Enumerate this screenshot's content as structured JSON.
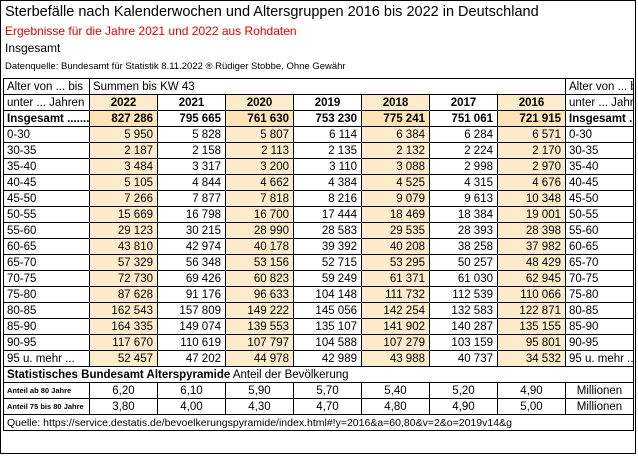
{
  "title": "Sterbefälle nach Kalenderwochen und Altersgruppen 2016 bis 2022 in Deutschland",
  "subtitle_red": "Ergebnisse für die Jahre 2021 und 2022 aus Rohdaten",
  "scope": "Insgesamt",
  "datasource": "Datenquelle: Bundesamt für Statistik 8.11.2022 ® Rüdiger Stobbe, Ohne Gewähr",
  "table": {
    "head_left_1": "Alter von ... bis",
    "head_left_2": "unter ... Jahren",
    "head_sum": "Summen bis KW 43",
    "head_right_1": "Alter von ... bis",
    "head_right_2": "unter ... Jahren",
    "years": [
      "2022",
      "2021",
      "2020",
      "2019",
      "2018",
      "2017",
      "2016"
    ],
    "highlight_cols": [
      0,
      2,
      4,
      6
    ],
    "total": {
      "label": "Insgesamt .......",
      "values": [
        "827 286",
        "795 665",
        "761 630",
        "753 230",
        "775 241",
        "751 061",
        "721 915"
      ]
    },
    "rows": [
      {
        "label": "0-30",
        "values": [
          "5 950",
          "5 828",
          "5 807",
          "6 114",
          "6 384",
          "6 284",
          "6 571"
        ]
      },
      {
        "label": "30-35",
        "values": [
          "2 187",
          "2 158",
          "2 113",
          "2 135",
          "2 132",
          "2 224",
          "2 170"
        ]
      },
      {
        "label": "35-40",
        "values": [
          "3 484",
          "3 317",
          "3 200",
          "3 110",
          "3 088",
          "2 998",
          "2 970"
        ]
      },
      {
        "label": "40-45",
        "values": [
          "5 105",
          "4 844",
          "4 662",
          "4 384",
          "4 525",
          "4 315",
          "4 676"
        ]
      },
      {
        "label": "45-50",
        "values": [
          "7 266",
          "7 877",
          "7 818",
          "8 216",
          "9 079",
          "9 613",
          "10 348"
        ]
      },
      {
        "label": "50-55",
        "values": [
          "15 669",
          "16 798",
          "16 700",
          "17 444",
          "18 469",
          "18 384",
          "19 001"
        ]
      },
      {
        "label": "55-60",
        "values": [
          "29 123",
          "30 215",
          "28 990",
          "28 583",
          "29 535",
          "28 393",
          "28 398"
        ]
      },
      {
        "label": "60-65",
        "values": [
          "43 810",
          "42 974",
          "40 178",
          "39 392",
          "40 208",
          "38 258",
          "37 982"
        ]
      },
      {
        "label": "65-70",
        "values": [
          "57 329",
          "56 348",
          "53 156",
          "52 715",
          "53 295",
          "50 257",
          "48 429"
        ]
      },
      {
        "label": "70-75",
        "values": [
          "72 730",
          "69 426",
          "60 823",
          "59 249",
          "61 371",
          "61 030",
          "62 945"
        ]
      },
      {
        "label": "75-80",
        "values": [
          "87 628",
          "91 176",
          "96 633",
          "104 148",
          "111 732",
          "112 539",
          "110 066"
        ]
      },
      {
        "label": "80-85",
        "values": [
          "162 543",
          "157 809",
          "149 222",
          "145 056",
          "142 254",
          "132 583",
          "122 871"
        ]
      },
      {
        "label": "85-90",
        "values": [
          "164 335",
          "149 074",
          "139 553",
          "135 107",
          "141 902",
          "140 287",
          "135 155"
        ]
      },
      {
        "label": "90-95",
        "values": [
          "117 670",
          "110 619",
          "107 797",
          "104 588",
          "107 279",
          "103 159",
          "95 801"
        ]
      },
      {
        "label": "95 u. mehr ...",
        "values": [
          "52 457",
          "47 202",
          "44 978",
          "42 989",
          "43 988",
          "40 737",
          "34 532"
        ]
      }
    ],
    "stat_title_bold": "Statistisches Bundesamt Alterspyramide",
    "stat_title_normal": " Anteil der Bevölkerung",
    "stat_rows": [
      {
        "label": "Anteil ab 80 Jahre",
        "values": [
          "6,20",
          "6,10",
          "5,90",
          "5,70",
          "5,40",
          "5,20",
          "4,90"
        ],
        "unit": "Millionen"
      },
      {
        "label": "Anteil 75 bis 80 Jahre",
        "values": [
          "3,80",
          "4,00",
          "4,30",
          "4,70",
          "4,80",
          "4,90",
          "5,00"
        ],
        "unit": "Millionen"
      }
    ],
    "source": "Quelle: https://service.destatis.de/bevoelkerungspyramide/index.html#!y=2016&a=60,80&v=2&o=2019v14&g"
  }
}
